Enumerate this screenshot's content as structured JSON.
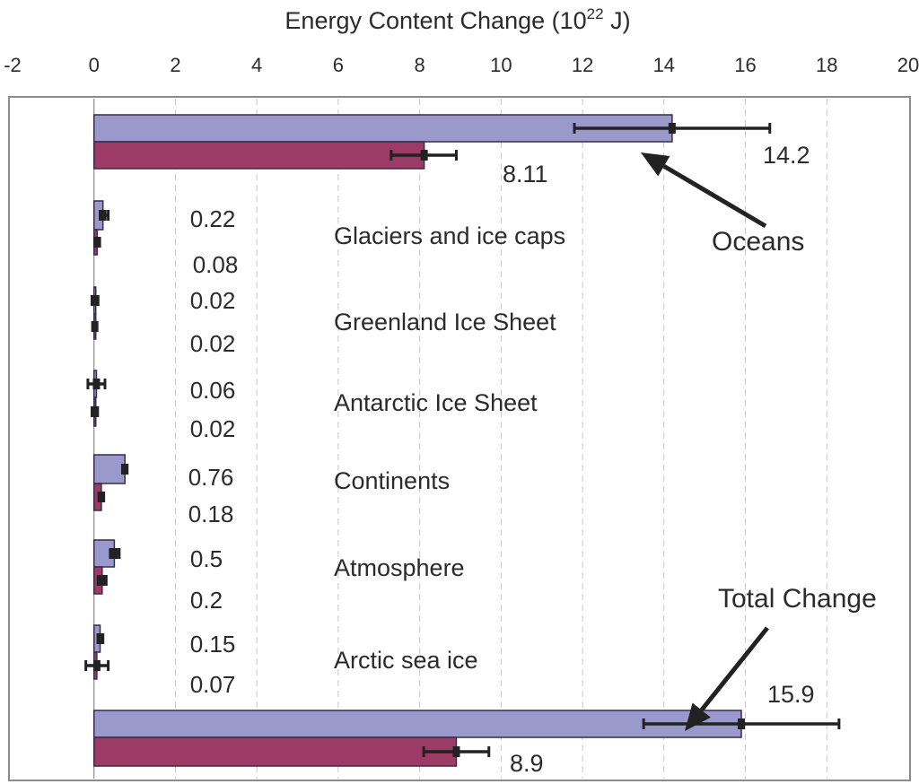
{
  "chart_data": {
    "type": "bar",
    "orientation": "horizontal",
    "title_parts": {
      "main": "Energy Content Change (10",
      "sup": "22",
      "unit": " J)"
    },
    "xlim": [
      -2,
      20
    ],
    "xticks": [
      "-2",
      "0",
      "2",
      "4",
      "6",
      "8",
      "10",
      "12",
      "14",
      "16",
      "18",
      "20"
    ],
    "grid": "dashed vertical",
    "colors": {
      "series1": "#9999cc",
      "series2": "#9c3c66",
      "frame": "#8c8c8c",
      "grid": "#c8c8c8",
      "error": "#222222"
    },
    "categories": [
      "Oceans",
      "Glaciers and ice caps",
      "Greenland Ice Sheet",
      "Antarctic Ice Sheet",
      "Continents",
      "Atmosphere",
      "Arctic sea ice",
      "Total Change"
    ],
    "series": [
      {
        "values": [
          14.2,
          0.22,
          0.02,
          0.06,
          0.76,
          0.5,
          0.15,
          15.9
        ],
        "labels": [
          "14.2",
          "0.22",
          "0.02",
          "0.06",
          "0.76",
          "0.5",
          "0.15",
          "15.9"
        ],
        "error_low": [
          11.8,
          0.15,
          -0.05,
          -0.15,
          0.7,
          0.4,
          0.1,
          13.5
        ],
        "error_high": [
          16.6,
          0.35,
          0.1,
          0.27,
          0.8,
          0.62,
          0.22,
          18.3
        ]
      },
      {
        "values": [
          8.11,
          0.08,
          0.02,
          0.02,
          0.18,
          0.2,
          0.07,
          8.9
        ],
        "labels": [
          "8.11",
          "0.08",
          "0.02",
          "0.02",
          "0.18",
          "0.2",
          "0.07",
          "8.9"
        ],
        "error_low": [
          7.3,
          0.02,
          -0.02,
          -0.05,
          0.12,
          0.1,
          -0.2,
          8.1
        ],
        "error_high": [
          8.9,
          0.14,
          0.06,
          0.09,
          0.24,
          0.3,
          0.35,
          9.7
        ]
      }
    ],
    "annotations": [
      "Oceans",
      "Total Change"
    ]
  }
}
